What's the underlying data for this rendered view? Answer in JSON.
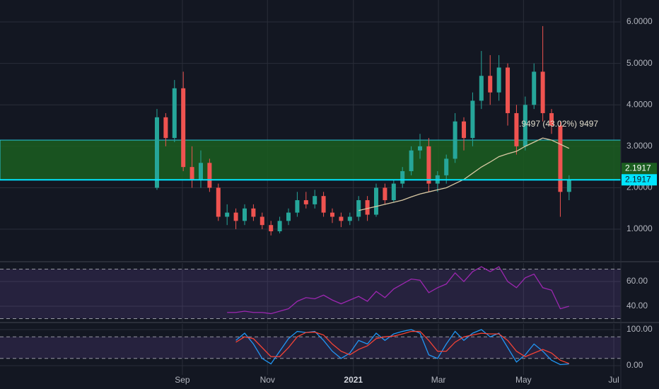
{
  "chart_data": [
    {
      "type": "candlestick",
      "categories": [
        null,
        null,
        null,
        null,
        null,
        null,
        null,
        null,
        null,
        null,
        null,
        null,
        null,
        null,
        null,
        null,
        null,
        null,
        null,
        null,
        null,
        null,
        null,
        null,
        null,
        null,
        null,
        null,
        null,
        null,
        null,
        null,
        null,
        null,
        null,
        null,
        null,
        null,
        null,
        null,
        null,
        null,
        null,
        null,
        null,
        null,
        null,
        null
      ],
      "open": [
        2.0,
        3.7,
        3.2,
        4.4,
        2.5,
        2.2,
        2.6,
        2.0,
        1.3,
        1.4,
        1.2,
        1.5,
        1.3,
        1.1,
        0.95,
        1.2,
        1.4,
        1.7,
        1.6,
        1.8,
        1.4,
        1.3,
        1.2,
        1.3,
        1.7,
        1.35,
        2.0,
        1.7,
        2.1,
        2.4,
        2.9,
        3.0,
        2.1,
        2.3,
        2.7,
        3.6,
        3.2,
        4.1,
        4.7,
        4.3,
        4.9,
        3.8,
        3.0,
        4.0,
        4.8,
        3.8,
        3.5,
        1.9
      ],
      "high": [
        3.9,
        3.8,
        4.6,
        4.8,
        3.0,
        2.9,
        2.7,
        2.1,
        1.6,
        1.5,
        1.6,
        1.6,
        1.4,
        1.2,
        1.3,
        1.5,
        1.9,
        1.9,
        1.95,
        1.9,
        1.5,
        1.4,
        1.4,
        1.8,
        1.8,
        2.1,
        2.1,
        2.2,
        2.5,
        3.0,
        3.3,
        3.2,
        2.4,
        2.8,
        3.8,
        3.7,
        4.3,
        5.3,
        5.2,
        5.2,
        5.0,
        4.0,
        4.2,
        5.0,
        5.9,
        3.9,
        3.6,
        2.3
      ],
      "low": [
        1.95,
        3.0,
        3.1,
        2.4,
        2.0,
        2.0,
        1.9,
        1.2,
        1.1,
        1.0,
        1.1,
        1.2,
        1.0,
        0.85,
        0.9,
        1.1,
        1.3,
        1.5,
        1.5,
        1.3,
        1.15,
        1.05,
        1.1,
        1.2,
        1.2,
        1.3,
        1.6,
        1.65,
        2.0,
        2.3,
        2.7,
        1.9,
        1.9,
        2.1,
        2.6,
        2.9,
        3.0,
        3.9,
        4.0,
        4.1,
        3.5,
        2.8,
        2.9,
        3.9,
        3.6,
        3.3,
        1.3,
        1.7
      ],
      "close": [
        3.7,
        3.2,
        4.4,
        2.5,
        2.2,
        2.6,
        2.0,
        1.3,
        1.4,
        1.2,
        1.5,
        1.3,
        1.1,
        0.95,
        1.2,
        1.4,
        1.7,
        1.6,
        1.8,
        1.4,
        1.3,
        1.2,
        1.3,
        1.7,
        1.35,
        2.0,
        1.7,
        2.1,
        2.4,
        2.9,
        3.0,
        2.1,
        2.3,
        2.7,
        3.6,
        3.2,
        4.1,
        4.7,
        4.3,
        4.9,
        3.8,
        3.0,
        4.0,
        4.8,
        3.8,
        3.5,
        1.9,
        2.2
      ],
      "up_color": "#26a69a",
      "down_color": "#ef5350",
      "ma": {
        "color": "#d9c9a3",
        "values": [
          null,
          null,
          null,
          null,
          null,
          null,
          null,
          null,
          null,
          null,
          null,
          null,
          null,
          null,
          null,
          null,
          null,
          null,
          null,
          null,
          null,
          null,
          null,
          1.45,
          1.5,
          1.55,
          1.6,
          1.65,
          1.7,
          1.78,
          1.85,
          1.9,
          1.95,
          2.0,
          2.1,
          2.2,
          2.35,
          2.5,
          2.62,
          2.75,
          2.82,
          2.88,
          3.0,
          3.1,
          3.2,
          3.15,
          3.05,
          2.95
        ]
      },
      "zone": {
        "low": 2.1917,
        "high": 3.15,
        "color": "#1b5e20"
      },
      "price_line": 2.1917,
      "annotation": ".9497 (43.02%) 9497",
      "xlim": [
        -17.9,
        52.9
      ],
      "xticks": [
        {
          "value": 2.9,
          "label": "Sep"
        },
        {
          "value": 12.6,
          "label": "Nov"
        },
        {
          "value": 22.4,
          "label": "2021"
        },
        {
          "value": 32.1,
          "label": "Mar"
        },
        {
          "value": 41.8,
          "label": "May"
        },
        {
          "value": 52.1,
          "label": "Jul"
        }
      ],
      "ylim": [
        0.25,
        6.53
      ],
      "yticks": [
        {
          "value": 1,
          "label": "1.0000"
        },
        {
          "value": 2,
          "label": "2.0000"
        },
        {
          "value": 3,
          "label": "3.0000"
        },
        {
          "value": 4,
          "label": "4.0000"
        },
        {
          "value": 5,
          "label": "5.0000"
        },
        {
          "value": 6,
          "label": "6.0000"
        }
      ]
    },
    {
      "type": "line",
      "series": [
        {
          "color": "#9c27b0",
          "values": [
            null,
            null,
            null,
            null,
            null,
            null,
            null,
            null,
            35,
            35,
            36,
            35,
            35,
            34,
            36,
            38,
            44,
            47,
            46,
            49,
            45,
            42,
            45,
            48,
            44,
            52,
            47,
            54,
            58,
            62,
            61,
            51,
            55,
            58,
            67,
            60,
            68,
            72,
            68,
            72,
            60,
            55,
            63,
            66,
            55,
            53,
            38,
            40
          ]
        }
      ],
      "band": [
        30,
        70
      ],
      "ylim": [
        27.4,
        74.9
      ],
      "yticks": [
        {
          "value": 40,
          "label": "40.00"
        },
        {
          "value": 60,
          "label": "60.00"
        }
      ]
    },
    {
      "type": "line",
      "series": [
        {
          "color": "#2196f3",
          "values": [
            null,
            null,
            null,
            null,
            null,
            null,
            null,
            null,
            null,
            70,
            90,
            60,
            20,
            5,
            40,
            75,
            95,
            92,
            95,
            70,
            40,
            20,
            35,
            70,
            60,
            90,
            70,
            88,
            95,
            100,
            90,
            30,
            20,
            60,
            95,
            70,
            90,
            100,
            80,
            90,
            50,
            10,
            30,
            60,
            40,
            15,
            3,
            5
          ]
        },
        {
          "color": "#f44336",
          "values": [
            null,
            null,
            null,
            null,
            null,
            null,
            null,
            null,
            null,
            65,
            80,
            75,
            50,
            25,
            25,
            50,
            80,
            92,
            93,
            85,
            60,
            40,
            30,
            45,
            55,
            75,
            80,
            82,
            88,
            95,
            95,
            70,
            40,
            40,
            65,
            80,
            85,
            90,
            88,
            88,
            70,
            40,
            25,
            35,
            45,
            35,
            15,
            6
          ]
        }
      ],
      "band": [
        20,
        80
      ],
      "ylim": [
        -25.5,
        115.7
      ],
      "yticks": [
        {
          "value": 0,
          "label": "0.00"
        },
        {
          "value": 100,
          "label": "100.00"
        }
      ]
    }
  ]
}
